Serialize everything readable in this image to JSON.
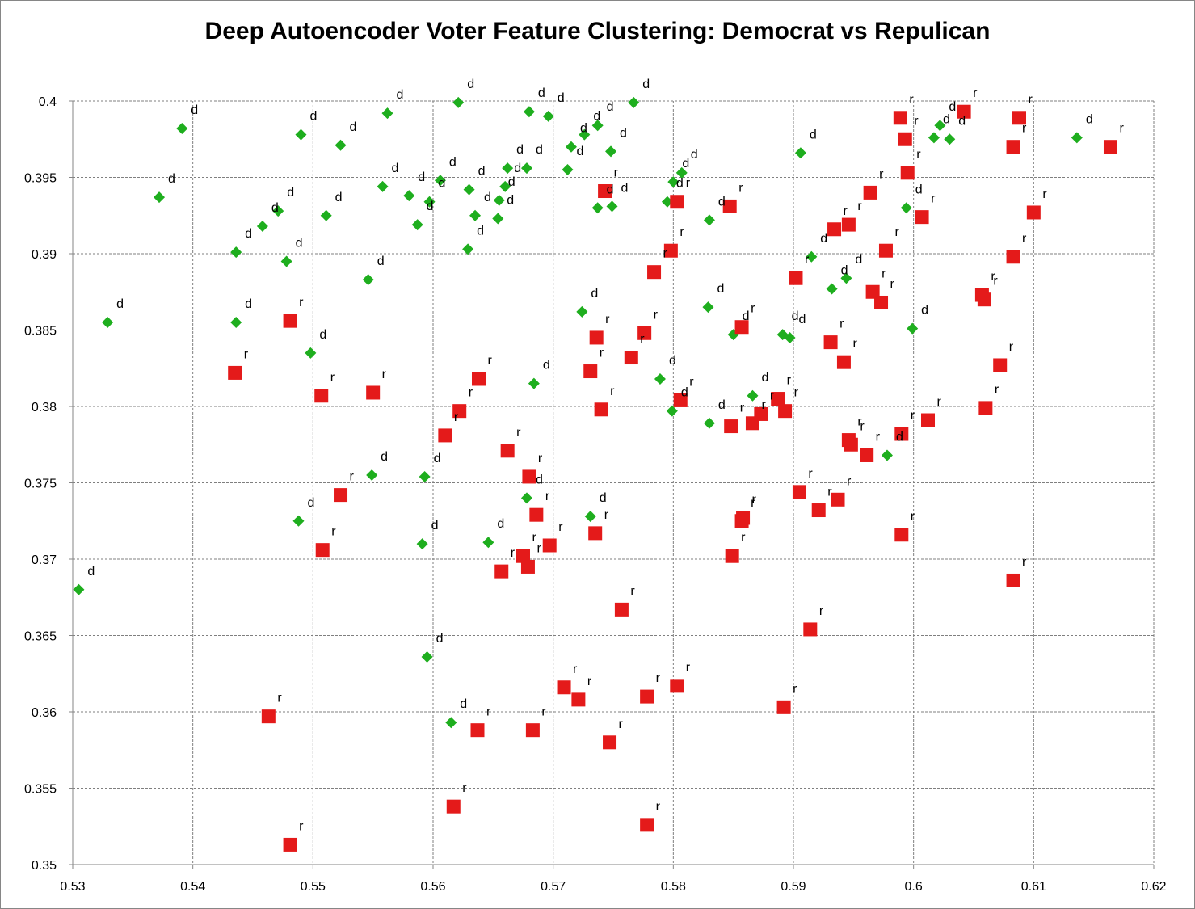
{
  "chart_data": {
    "type": "scatter",
    "title": "Deep Autoencoder Voter Feature Clustering: Democrat vs Repulican",
    "xlabel": "",
    "ylabel": "",
    "xlim": [
      0.53,
      0.62
    ],
    "ylim": [
      0.35,
      0.4
    ],
    "x_ticks": [
      "0.53",
      "0.54",
      "0.55",
      "0.56",
      "0.57",
      "0.58",
      "0.59",
      "0.6",
      "0.61",
      "0.62"
    ],
    "y_ticks": [
      "0.35",
      "0.355",
      "0.36",
      "0.365",
      "0.37",
      "0.375",
      "0.38",
      "0.385",
      "0.39",
      "0.395",
      "0.4"
    ],
    "grid": true,
    "legend": "none",
    "series": [
      {
        "label_char": "d",
        "color": "#1eae1e",
        "marker": "diamond",
        "points": [
          [
            0.5391,
            0.3982
          ],
          [
            0.5372,
            0.3937
          ],
          [
            0.549,
            0.3978
          ],
          [
            0.5523,
            0.3971
          ],
          [
            0.5562,
            0.3992
          ],
          [
            0.5621,
            0.3999
          ],
          [
            0.568,
            0.3993
          ],
          [
            0.5696,
            0.399
          ],
          [
            0.5767,
            0.3999
          ],
          [
            0.5737,
            0.3984
          ],
          [
            0.5726,
            0.3978
          ],
          [
            0.5715,
            0.397
          ],
          [
            0.5748,
            0.3967
          ],
          [
            0.5712,
            0.3955
          ],
          [
            0.5678,
            0.3956
          ],
          [
            0.5662,
            0.3956
          ],
          [
            0.566,
            0.3944
          ],
          [
            0.563,
            0.3942
          ],
          [
            0.5558,
            0.3944
          ],
          [
            0.558,
            0.3938
          ],
          [
            0.5597,
            0.3934
          ],
          [
            0.5606,
            0.3948
          ],
          [
            0.5655,
            0.3935
          ],
          [
            0.5654,
            0.3923
          ],
          [
            0.5635,
            0.3925
          ],
          [
            0.5587,
            0.3919
          ],
          [
            0.5629,
            0.3903
          ],
          [
            0.5511,
            0.3925
          ],
          [
            0.5471,
            0.3928
          ],
          [
            0.5458,
            0.3918
          ],
          [
            0.5436,
            0.3901
          ],
          [
            0.5478,
            0.3895
          ],
          [
            0.5546,
            0.3883
          ],
          [
            0.5329,
            0.3855
          ],
          [
            0.5436,
            0.3855
          ],
          [
            0.5498,
            0.3835
          ],
          [
            0.5737,
            0.393
          ],
          [
            0.5749,
            0.3931
          ],
          [
            0.5795,
            0.3934
          ],
          [
            0.58,
            0.3947
          ],
          [
            0.5807,
            0.3953
          ],
          [
            0.583,
            0.3922
          ],
          [
            0.5906,
            0.3966
          ],
          [
            0.5915,
            0.3898
          ],
          [
            0.5932,
            0.3877
          ],
          [
            0.5944,
            0.3884
          ],
          [
            0.5829,
            0.3865
          ],
          [
            0.585,
            0.3847
          ],
          [
            0.5891,
            0.3847
          ],
          [
            0.5897,
            0.3845
          ],
          [
            0.5999,
            0.3851
          ],
          [
            0.5994,
            0.393
          ],
          [
            0.6017,
            0.3976
          ],
          [
            0.6022,
            0.3984
          ],
          [
            0.603,
            0.3975
          ],
          [
            0.6136,
            0.3976
          ],
          [
            0.5724,
            0.3862
          ],
          [
            0.5684,
            0.3815
          ],
          [
            0.5789,
            0.3818
          ],
          [
            0.5799,
            0.3797
          ],
          [
            0.583,
            0.3789
          ],
          [
            0.5866,
            0.3807
          ],
          [
            0.5978,
            0.3768
          ],
          [
            0.5549,
            0.3755
          ],
          [
            0.5593,
            0.3754
          ],
          [
            0.5678,
            0.374
          ],
          [
            0.5488,
            0.3725
          ],
          [
            0.5591,
            0.371
          ],
          [
            0.5646,
            0.3711
          ],
          [
            0.5731,
            0.3728
          ],
          [
            0.5305,
            0.368
          ],
          [
            0.5595,
            0.3636
          ],
          [
            0.5615,
            0.3593
          ]
        ]
      },
      {
        "label_char": "r",
        "color": "#e41a1a",
        "marker": "square",
        "points": [
          [
            0.5989,
            0.3989
          ],
          [
            0.6042,
            0.3993
          ],
          [
            0.6088,
            0.3989
          ],
          [
            0.5993,
            0.3975
          ],
          [
            0.6083,
            0.397
          ],
          [
            0.6164,
            0.397
          ],
          [
            0.5995,
            0.3953
          ],
          [
            0.5964,
            0.394
          ],
          [
            0.5946,
            0.3919
          ],
          [
            0.5934,
            0.3916
          ],
          [
            0.6007,
            0.3924
          ],
          [
            0.61,
            0.3927
          ],
          [
            0.5977,
            0.3902
          ],
          [
            0.6083,
            0.3898
          ],
          [
            0.5902,
            0.3884
          ],
          [
            0.5966,
            0.3875
          ],
          [
            0.5973,
            0.3868
          ],
          [
            0.6057,
            0.3873
          ],
          [
            0.6059,
            0.387
          ],
          [
            0.5931,
            0.3842
          ],
          [
            0.5942,
            0.3829
          ],
          [
            0.6072,
            0.3827
          ],
          [
            0.599,
            0.3782
          ],
          [
            0.6012,
            0.3791
          ],
          [
            0.606,
            0.3799
          ],
          [
            0.5946,
            0.3778
          ],
          [
            0.5948,
            0.3775
          ],
          [
            0.5961,
            0.3768
          ],
          [
            0.5905,
            0.3744
          ],
          [
            0.5921,
            0.3732
          ],
          [
            0.5937,
            0.3739
          ],
          [
            0.599,
            0.3716
          ],
          [
            0.6083,
            0.3686
          ],
          [
            0.5914,
            0.3654
          ],
          [
            0.5892,
            0.3603
          ],
          [
            0.5743,
            0.3941
          ],
          [
            0.5803,
            0.3934
          ],
          [
            0.5847,
            0.3931
          ],
          [
            0.5798,
            0.3902
          ],
          [
            0.5784,
            0.3888
          ],
          [
            0.5736,
            0.3845
          ],
          [
            0.5776,
            0.3848
          ],
          [
            0.5765,
            0.3832
          ],
          [
            0.5731,
            0.3823
          ],
          [
            0.574,
            0.3798
          ],
          [
            0.5857,
            0.3852
          ],
          [
            0.5806,
            0.3804
          ],
          [
            0.5848,
            0.3787
          ],
          [
            0.5866,
            0.3789
          ],
          [
            0.5873,
            0.3795
          ],
          [
            0.5887,
            0.3805
          ],
          [
            0.5893,
            0.3797
          ],
          [
            0.5481,
            0.3856
          ],
          [
            0.5435,
            0.3822
          ],
          [
            0.5507,
            0.3807
          ],
          [
            0.555,
            0.3809
          ],
          [
            0.5638,
            0.3818
          ],
          [
            0.5622,
            0.3797
          ],
          [
            0.561,
            0.3781
          ],
          [
            0.5662,
            0.3771
          ],
          [
            0.568,
            0.3754
          ],
          [
            0.5686,
            0.3729
          ],
          [
            0.5523,
            0.3742
          ],
          [
            0.5508,
            0.3706
          ],
          [
            0.5675,
            0.3702
          ],
          [
            0.5679,
            0.3695
          ],
          [
            0.5697,
            0.3709
          ],
          [
            0.5657,
            0.3692
          ],
          [
            0.5735,
            0.3717
          ],
          [
            0.5858,
            0.3727
          ],
          [
            0.5857,
            0.3725
          ],
          [
            0.5849,
            0.3702
          ],
          [
            0.5757,
            0.3667
          ],
          [
            0.5709,
            0.3616
          ],
          [
            0.5721,
            0.3608
          ],
          [
            0.5778,
            0.361
          ],
          [
            0.5803,
            0.3617
          ],
          [
            0.5463,
            0.3597
          ],
          [
            0.5637,
            0.3588
          ],
          [
            0.5683,
            0.3588
          ],
          [
            0.5747,
            0.358
          ],
          [
            0.5617,
            0.3538
          ],
          [
            0.5778,
            0.3526
          ],
          [
            0.5481,
            0.3513
          ]
        ]
      }
    ]
  }
}
